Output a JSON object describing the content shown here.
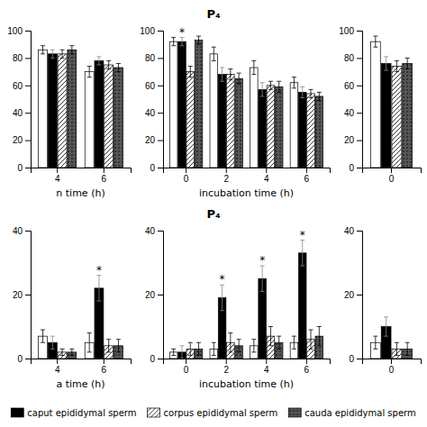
{
  "chart_data": [
    {
      "type": "bar",
      "xlabel": "n time (h)",
      "categories": [
        "4",
        "6"
      ],
      "series": [
        {
          "color": "#ffffff",
          "values": [
            86,
            70
          ],
          "errors": [
            3,
            4
          ]
        },
        {
          "name": "caput epididymal sperm",
          "color": "#000000",
          "values": [
            83,
            78
          ],
          "errors": [
            3,
            3
          ]
        },
        {
          "name": "corpus epididymal sperm",
          "color": "#ffffff",
          "values": [
            83,
            75
          ],
          "errors": [
            3,
            3
          ]
        },
        {
          "name": "cauda epididymal sperm",
          "color": "#555555",
          "values": [
            86,
            73
          ],
          "errors": [
            3,
            3
          ]
        }
      ],
      "ylim": [
        0,
        100
      ],
      "yticks": [
        0,
        20,
        40,
        60,
        80,
        100
      ],
      "legend": "bottom"
    },
    {
      "type": "bar",
      "title": "P₄",
      "xlabel": "incubation time (h)",
      "categories": [
        "0",
        "2",
        "4",
        "6"
      ],
      "series": [
        {
          "color": "#ffffff",
          "values": [
            92,
            83,
            73,
            62
          ],
          "errors": [
            3,
            5,
            5,
            4
          ]
        },
        {
          "name": "caput epididymal sperm",
          "color": "#000000",
          "values": [
            92,
            68,
            57,
            55
          ],
          "errors": [
            3,
            5,
            5,
            4
          ]
        },
        {
          "name": "corpus epididymal sperm",
          "color": "#ffffff",
          "values": [
            70,
            68,
            60,
            54
          ],
          "errors": [
            4,
            4,
            3,
            3
          ]
        },
        {
          "name": "cauda epididymal sperm",
          "color": "#555555",
          "values": [
            93,
            65,
            59,
            52
          ],
          "errors": [
            3,
            4,
            4,
            3
          ]
        }
      ],
      "annotations": [
        {
          "text": "*",
          "series": "caput epididymal sperm",
          "category": "0"
        }
      ],
      "ylim": [
        0,
        100
      ],
      "yticks": [
        0,
        20,
        40,
        60,
        80,
        100
      ]
    },
    {
      "type": "bar",
      "categories": [
        "0"
      ],
      "series": [
        {
          "color": "#ffffff",
          "values": [
            92
          ],
          "errors": [
            4
          ]
        },
        {
          "name": "caput epididymal sperm",
          "color": "#000000",
          "values": [
            76
          ],
          "errors": [
            5
          ]
        },
        {
          "name": "corpus epididymal sperm",
          "color": "#ffffff",
          "values": [
            74
          ],
          "errors": [
            4
          ]
        },
        {
          "name": "cauda epididymal sperm",
          "color": "#555555",
          "values": [
            76
          ],
          "errors": [
            4
          ]
        }
      ],
      "ylim": [
        0,
        100
      ],
      "yticks": [
        0,
        20,
        40,
        60,
        80,
        100
      ]
    },
    {
      "type": "bar",
      "xlabel": "a time (h)",
      "categories": [
        "4",
        "6"
      ],
      "series": [
        {
          "color": "#ffffff",
          "values": [
            7,
            5
          ],
          "errors": [
            2,
            3
          ]
        },
        {
          "name": "caput epididymal sperm",
          "color": "#000000",
          "values": [
            5,
            22
          ],
          "errors": [
            2,
            4
          ]
        },
        {
          "name": "corpus epididymal sperm",
          "color": "#ffffff",
          "values": [
            2,
            4
          ],
          "errors": [
            1,
            2
          ]
        },
        {
          "name": "cauda epididymal sperm",
          "color": "#555555",
          "values": [
            2,
            4
          ],
          "errors": [
            1,
            2
          ]
        }
      ],
      "annotations": [
        {
          "text": "*",
          "series": "caput epididymal sperm",
          "category": "6"
        }
      ],
      "ylim": [
        0,
        40
      ],
      "yticks": [
        0,
        20,
        40
      ]
    },
    {
      "type": "bar",
      "title": "P₄",
      "xlabel": "incubation time (h)",
      "categories": [
        "0",
        "2",
        "4",
        "6"
      ],
      "series": [
        {
          "color": "#ffffff",
          "values": [
            2,
            3,
            4,
            5
          ],
          "errors": [
            1,
            2,
            2,
            2
          ]
        },
        {
          "name": "caput epididymal sperm",
          "color": "#000000",
          "values": [
            2,
            19,
            25,
            33
          ],
          "errors": [
            2,
            4,
            4,
            4
          ]
        },
        {
          "name": "corpus epididymal sperm",
          "color": "#ffffff",
          "values": [
            3,
            5,
            7,
            6
          ],
          "errors": [
            2,
            3,
            3,
            3
          ]
        },
        {
          "name": "cauda epididymal sperm",
          "color": "#555555",
          "values": [
            3,
            4,
            5,
            7
          ],
          "errors": [
            2,
            2,
            2,
            3
          ]
        }
      ],
      "annotations": [
        {
          "text": "*",
          "series": "caput epididymal sperm",
          "category": "2"
        },
        {
          "text": "*",
          "series": "caput epididymal sperm",
          "category": "4"
        },
        {
          "text": "*",
          "series": "caput epididymal sperm",
          "category": "6"
        }
      ],
      "ylim": [
        0,
        40
      ],
      "yticks": [
        0,
        20,
        40
      ]
    },
    {
      "type": "bar",
      "categories": [
        "0"
      ],
      "series": [
        {
          "color": "#ffffff",
          "values": [
            5
          ],
          "errors": [
            2
          ]
        },
        {
          "name": "caput epididymal sperm",
          "color": "#000000",
          "values": [
            10
          ],
          "errors": [
            3
          ]
        },
        {
          "name": "corpus epididymal sperm",
          "color": "#ffffff",
          "values": [
            3
          ],
          "errors": [
            2
          ]
        },
        {
          "name": "cauda epididymal sperm",
          "color": "#555555",
          "values": [
            3
          ],
          "errors": [
            2
          ]
        }
      ],
      "ylim": [
        0,
        40
      ],
      "yticks": [
        0,
        20,
        40
      ]
    }
  ]
}
